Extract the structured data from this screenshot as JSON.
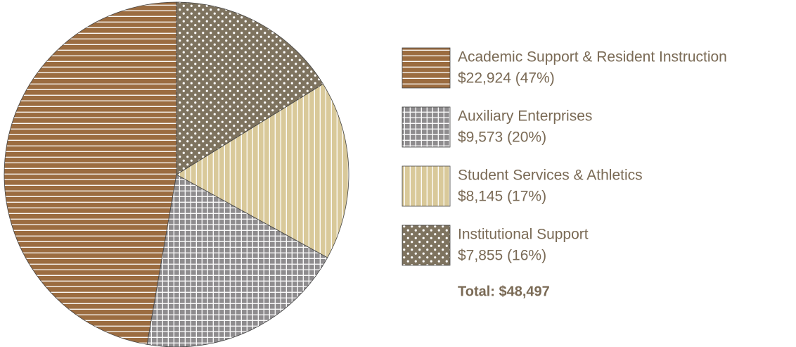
{
  "chart_data": {
    "type": "pie",
    "categories": [
      "Academic Support & Resident Instruction",
      "Auxiliary Enterprises",
      "Student Services & Athletics",
      "Institutional Support"
    ],
    "values": [
      22924,
      9573,
      8145,
      7855
    ],
    "value_labels": [
      "$22,924 (47%)",
      "$9,573 (20%)",
      "$8,145 (17%)",
      "$7,855 (16%)"
    ],
    "colors": [
      "#9b6c40",
      "#8e8c8e",
      "#d9c99a",
      "#7e735f"
    ],
    "patterns": [
      "horizontal",
      "grid",
      "vertical",
      "dots"
    ],
    "total": "Total: $48,497",
    "legend": "right"
  }
}
